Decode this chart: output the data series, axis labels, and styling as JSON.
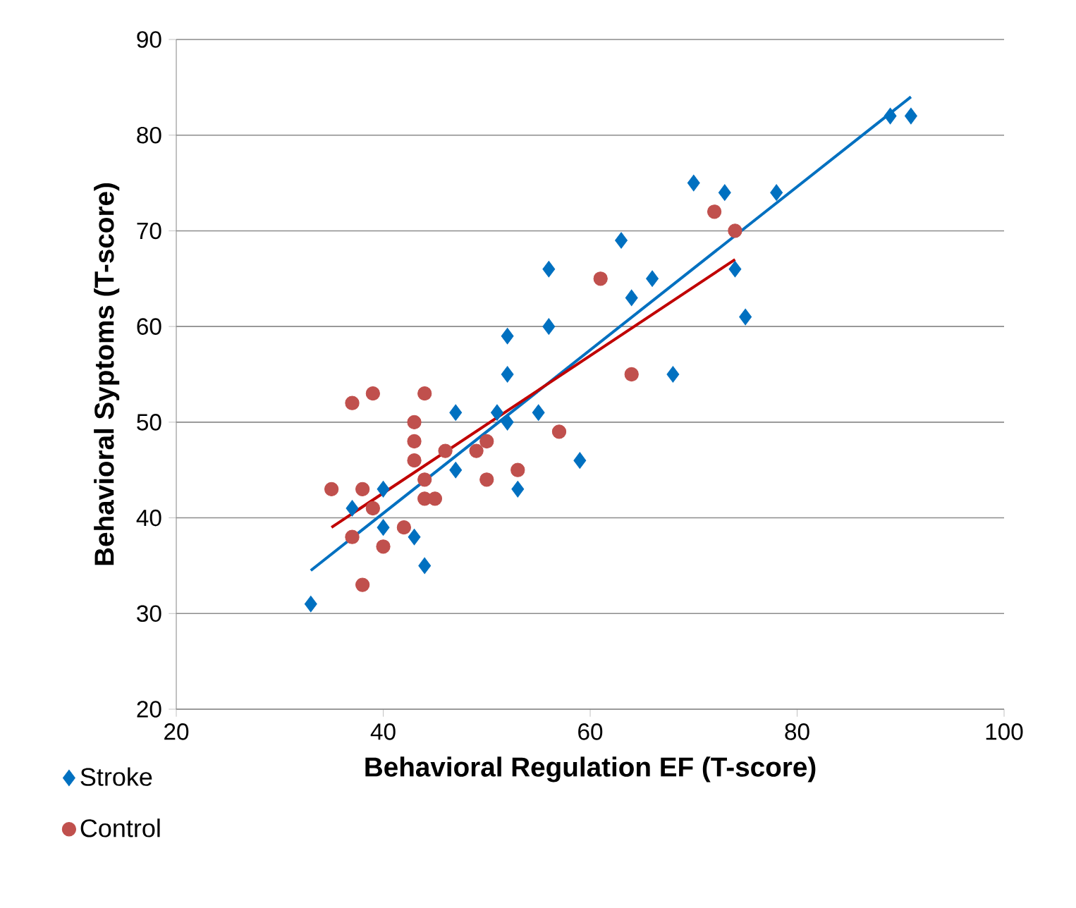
{
  "chart_data": {
    "type": "scatter",
    "xlabel": "Behavioral Regulation EF (T-score)",
    "ylabel": "Behavioral Syptoms (T-score)",
    "xlim": [
      20,
      100
    ],
    "ylim": [
      20,
      90
    ],
    "xticks": [
      20,
      40,
      60,
      80,
      100
    ],
    "yticks": [
      20,
      30,
      40,
      50,
      60,
      70,
      80,
      90
    ],
    "grid": "y",
    "legend": "bottom left",
    "series": [
      {
        "name": "Stroke",
        "color": "#0070c0",
        "marker": "diamond",
        "x": [
          33,
          37,
          40,
          40,
          43,
          44,
          47,
          47,
          51,
          52,
          52,
          52,
          55,
          53,
          59,
          56,
          56,
          63,
          64,
          66,
          68,
          70,
          73,
          74,
          75,
          78,
          89,
          91
        ],
        "values": [
          31,
          41,
          43,
          39,
          38,
          35,
          45,
          51,
          51,
          50,
          55,
          59,
          51,
          43,
          46,
          60,
          66,
          69,
          63,
          65,
          55,
          75,
          74,
          66,
          61,
          74,
          82,
          82
        ]
      },
      {
        "name": "Control",
        "color": "#c0504d",
        "marker": "circle",
        "x": [
          37,
          39,
          44,
          43,
          43,
          43,
          44,
          44,
          45,
          46,
          49,
          50,
          50,
          53,
          57,
          35,
          38,
          39,
          37,
          42,
          40,
          38,
          61,
          64,
          72,
          74
        ],
        "values": [
          52,
          53,
          53,
          50,
          48,
          46,
          44,
          42,
          42,
          47,
          47,
          48,
          44,
          45,
          49,
          43,
          43,
          41,
          38,
          39,
          37,
          33,
          65,
          55,
          72,
          70
        ]
      },
      {
        "type": "line",
        "color": "#0070c0",
        "x": [
          33,
          91
        ],
        "values": [
          34.5,
          84
        ]
      },
      {
        "type": "line",
        "color": "#c00000",
        "x": [
          35,
          74
        ],
        "values": [
          39,
          67
        ]
      }
    ]
  }
}
